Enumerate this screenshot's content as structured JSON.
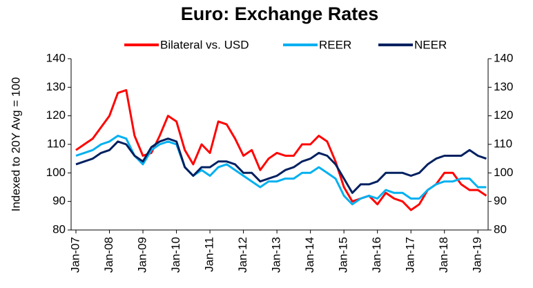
{
  "chart_data": {
    "type": "line",
    "title": "Euro: Exchange Rates",
    "ylabel": "Indexed to 20Y Avg = 100",
    "categories": [
      "Jan-07",
      null,
      null,
      null,
      "Jan-08",
      null,
      null,
      null,
      "Jan-09",
      null,
      null,
      null,
      "Jan-10",
      null,
      null,
      null,
      "Jan-11",
      null,
      null,
      null,
      "Jan-12",
      null,
      null,
      null,
      "Jan-13",
      null,
      null,
      null,
      "Jan-14",
      null,
      null,
      null,
      "Jan-15",
      null,
      null,
      null,
      "Jan-16",
      null,
      null,
      null,
      "Jan-17",
      null,
      null,
      null,
      "Jan-18",
      null,
      null,
      null,
      "Jan-19",
      null
    ],
    "series": [
      {
        "name": "Bilateral vs. USD",
        "color": "#ff0000",
        "values": [
          108,
          110,
          112,
          116,
          120,
          128,
          129,
          113,
          106,
          107,
          113,
          120,
          118,
          108,
          103,
          110,
          107,
          118,
          117,
          112,
          106,
          108,
          101,
          105,
          107,
          106,
          106,
          110,
          110,
          113,
          111,
          104,
          95,
          90,
          91,
          92,
          89,
          93,
          91,
          90,
          87,
          89,
          94,
          96,
          100,
          100,
          96,
          94,
          94,
          92
        ]
      },
      {
        "name": "REER",
        "color": "#00b0f0",
        "values": [
          106,
          107,
          108,
          110,
          111,
          113,
          112,
          106,
          103,
          108,
          110,
          111,
          110,
          102,
          99,
          101,
          99,
          102,
          103,
          101,
          99,
          97,
          95,
          97,
          97,
          98,
          98,
          100,
          100,
          102,
          100,
          98,
          92,
          89,
          91,
          92,
          91,
          94,
          93,
          93,
          91,
          91,
          94,
          96,
          97,
          97,
          98,
          98,
          95,
          95
        ]
      },
      {
        "name": "NEER",
        "color": "#002060",
        "values": [
          103,
          104,
          105,
          107,
          108,
          111,
          110,
          106,
          104,
          109,
          111,
          112,
          111,
          102,
          99,
          102,
          102,
          104,
          104,
          103,
          100,
          100,
          97,
          98,
          99,
          101,
          102,
          104,
          105,
          107,
          106,
          103,
          98,
          93,
          96,
          96,
          97,
          100,
          100,
          100,
          99,
          100,
          103,
          105,
          106,
          106,
          106,
          108,
          106,
          105
        ]
      }
    ],
    "ylim": [
      80,
      140
    ],
    "yticks": [
      80,
      90,
      100,
      110,
      120,
      130,
      140
    ],
    "y2lim": [
      80,
      140
    ],
    "y2ticks": [
      80,
      90,
      100,
      110,
      120,
      130,
      140
    ],
    "grid": false
  }
}
